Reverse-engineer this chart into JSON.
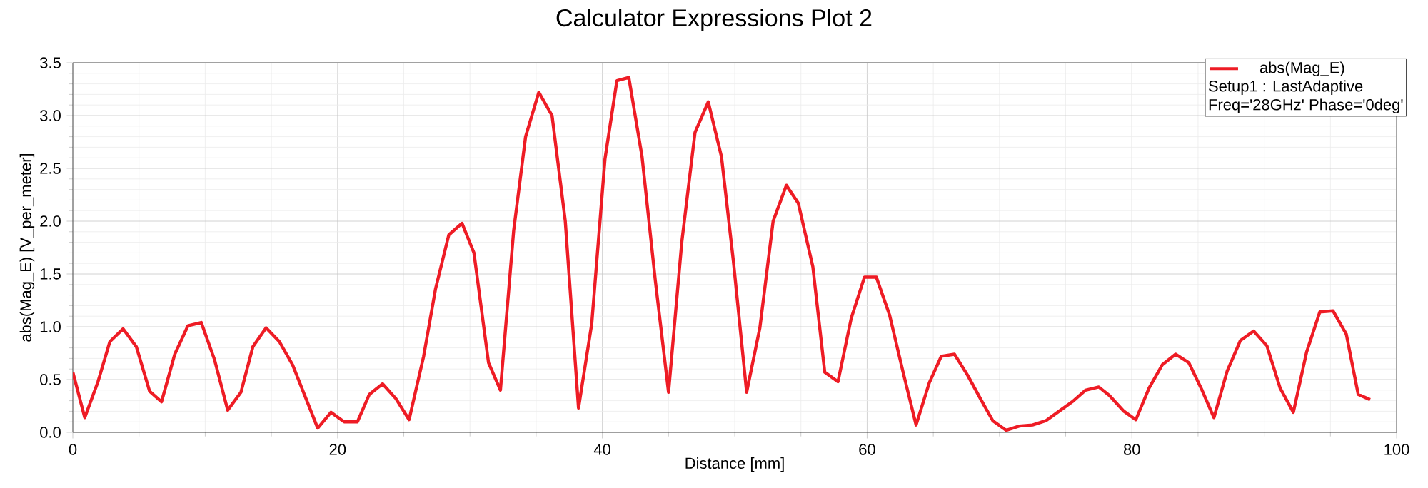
{
  "chart_data": {
    "type": "line",
    "title": "Calculator Expressions Plot 2",
    "xlabel": "Distance [mm]",
    "ylabel": "abs(Mag_E) [V_per_meter]",
    "x": [
      0,
      0.9,
      1.9,
      2.8,
      3.8,
      4.8,
      5.8,
      6.7,
      7.7,
      8.7,
      9.7,
      10.7,
      11.7,
      12.7,
      13.6,
      14.6,
      15.6,
      16.6,
      18.5,
      19.5,
      20.5,
      21.5,
      22.4,
      23.4,
      24.4,
      25.4,
      26.5,
      27.4,
      28.4,
      29.4,
      30.3,
      31.4,
      32.3,
      33.3,
      34.2,
      35.2,
      36.2,
      37.2,
      38.2,
      39.2,
      40.2,
      41.1,
      42.0,
      43.0,
      44.0,
      45.0,
      46.0,
      47.0,
      48.0,
      49.0,
      49.9,
      50.9,
      51.9,
      52.9,
      53.9,
      54.8,
      55.9,
      56.8,
      57.8,
      58.8,
      59.8,
      60.7,
      61.7,
      62.7,
      63.7,
      64.7,
      65.6,
      66.6,
      67.6,
      68.6,
      69.5,
      70.5,
      71.5,
      72.5,
      73.5,
      74.5,
      75.5,
      76.5,
      77.5,
      78.3,
      79.4,
      80.3,
      81.3,
      82.3,
      83.3,
      84.3,
      85.3,
      86.2,
      87.2,
      88.2,
      89.2,
      90.2,
      91.2,
      92.2,
      93.2,
      94.2,
      95.2,
      96.2,
      97.1,
      98.0
    ],
    "series": [
      {
        "name": "abs(Mag_E)",
        "color": "#ee1c25",
        "values": [
          0.57,
          0.14,
          0.48,
          0.86,
          0.98,
          0.81,
          0.39,
          0.29,
          0.74,
          1.01,
          1.04,
          0.69,
          0.21,
          0.38,
          0.81,
          0.99,
          0.86,
          0.64,
          0.04,
          0.19,
          0.1,
          0.1,
          0.36,
          0.46,
          0.32,
          0.12,
          0.72,
          1.36,
          1.87,
          1.98,
          1.7,
          0.66,
          0.4,
          1.91,
          2.8,
          3.22,
          3.0,
          2.0,
          0.23,
          1.03,
          2.59,
          3.33,
          3.36,
          2.61,
          1.44,
          0.38,
          1.8,
          2.84,
          3.13,
          2.61,
          1.62,
          0.38,
          0.99,
          2.0,
          2.34,
          2.17,
          1.57,
          0.57,
          0.48,
          1.08,
          1.47,
          1.47,
          1.11,
          0.58,
          0.07,
          0.47,
          0.72,
          0.74,
          0.54,
          0.31,
          0.11,
          0.02,
          0.06,
          0.07,
          0.11,
          0.2,
          0.29,
          0.4,
          0.43,
          0.35,
          0.2,
          0.12,
          0.42,
          0.64,
          0.74,
          0.66,
          0.4,
          0.14,
          0.58,
          0.87,
          0.96,
          0.82,
          0.42,
          0.19,
          0.76,
          1.14,
          1.15,
          0.93,
          0.36,
          0.31
        ]
      }
    ],
    "xlim": [
      0,
      100
    ],
    "xticks": [
      0,
      20,
      40,
      60,
      80,
      100
    ],
    "ylim": [
      0,
      3.5
    ],
    "yticks": [
      {
        "value": 0,
        "label": "0.0"
      },
      {
        "value": 0.5,
        "label": "0.5"
      },
      {
        "value": 1,
        "label": "1.0"
      },
      {
        "value": 1.5,
        "label": "1.5"
      },
      {
        "value": 2,
        "label": "2.0"
      },
      {
        "value": 2.5,
        "label": "2.5"
      },
      {
        "value": 3,
        "label": "3.0"
      },
      {
        "value": 3.5,
        "label": "3.5"
      }
    ],
    "grid": true,
    "legend": "top right",
    "marker": "none",
    "line_style": "solid",
    "annotations": [
      "Setup1 : LastAdaptive",
      "Freq='28GHz' Phase='0deg'"
    ]
  }
}
